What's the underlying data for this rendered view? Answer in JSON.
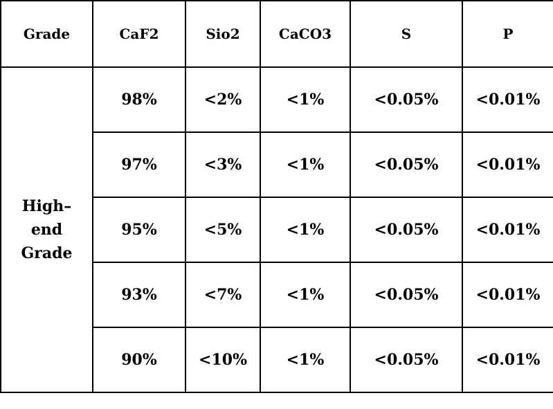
{
  "table": {
    "headers": [
      "Grade",
      "CaF2",
      "Sio2",
      "CaCO3",
      "S",
      "P"
    ],
    "grade_label_lines": [
      "High–",
      "end",
      "Grade"
    ],
    "rows": [
      [
        "98%",
        "<2%",
        "<1%",
        "<0.05%",
        "<0.01%"
      ],
      [
        "97%",
        "<3%",
        "<1%",
        "<0.05%",
        "<0.01%"
      ],
      [
        "95%",
        "<5%",
        "<1%",
        "<0.05%",
        "<0.01%"
      ],
      [
        "93%",
        "<7%",
        "<1%",
        "<0.05%",
        "<0.01%"
      ],
      [
        "90%",
        "<10%",
        "<1%",
        "<0.05%",
        "<0.01%"
      ]
    ]
  }
}
